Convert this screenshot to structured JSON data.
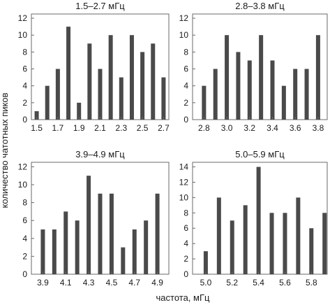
{
  "chart_data": [
    {
      "type": "bar",
      "title": "1.5–2.7 мГц",
      "x": [
        1.5,
        1.6,
        1.7,
        1.8,
        1.9,
        2.0,
        2.1,
        2.2,
        2.3,
        2.4,
        2.5,
        2.6,
        2.7
      ],
      "values": [
        1,
        4,
        6,
        11,
        2,
        9,
        6,
        10,
        5,
        10,
        8,
        9,
        5
      ],
      "xticks": [
        "1.5",
        "1.7",
        "1.9",
        "2.1",
        "2.3",
        "2.5",
        "2.7"
      ],
      "yticks": [
        "0",
        "2",
        "4",
        "6",
        "8",
        "10",
        "12"
      ],
      "xlim": [
        1.45,
        2.75
      ],
      "ylim": [
        0,
        12.5
      ]
    },
    {
      "type": "bar",
      "title": "2.8–3.8 мГц",
      "x": [
        2.8,
        2.9,
        3.0,
        3.1,
        3.2,
        3.3,
        3.4,
        3.5,
        3.6,
        3.7,
        3.8
      ],
      "values": [
        4,
        6,
        10,
        8,
        7,
        10,
        7,
        4,
        6,
        6,
        10
      ],
      "xticks": [
        "2.8",
        "3.0",
        "3.2",
        "3.4",
        "3.6",
        "3.8"
      ],
      "yticks": [
        "0",
        "2",
        "4",
        "6",
        "8",
        "10",
        "12"
      ],
      "xlim": [
        2.7,
        3.88
      ],
      "ylim": [
        0,
        12.5
      ]
    },
    {
      "type": "bar",
      "title": "3.9–4.9 мГц",
      "x": [
        3.9,
        4.0,
        4.1,
        4.2,
        4.3,
        4.4,
        4.5,
        4.6,
        4.7,
        4.8,
        4.9
      ],
      "values": [
        5,
        5,
        7,
        6,
        11,
        9,
        9,
        3,
        5,
        6,
        9
      ],
      "xticks": [
        "3.9",
        "4.1",
        "4.3",
        "4.5",
        "4.7",
        "4.9"
      ],
      "yticks": [
        "0",
        "2",
        "4",
        "6",
        "8",
        "10",
        "12"
      ],
      "xlim": [
        3.8,
        5.0
      ],
      "ylim": [
        0,
        12.5
      ]
    },
    {
      "type": "bar",
      "title": "5.0–5.9 мГц",
      "x": [
        5.0,
        5.1,
        5.2,
        5.3,
        5.4,
        5.5,
        5.6,
        5.7,
        5.8,
        5.9
      ],
      "values": [
        3,
        10,
        7,
        9,
        14,
        8,
        8,
        10,
        6,
        8
      ],
      "xticks": [
        "5.0",
        "5.2",
        "5.4",
        "5.6",
        "5.8"
      ],
      "yticks": [
        "0",
        "2",
        "4",
        "6",
        "8",
        "10",
        "12",
        "14"
      ],
      "xlim": [
        4.9,
        5.92
      ],
      "ylim": [
        0,
        14.6
      ]
    }
  ],
  "xlabel": "частота, мГц",
  "ylabel": "количество чатотных пиков",
  "bar_color": "#4a4a4a",
  "axis_color": "#6a6a6a"
}
